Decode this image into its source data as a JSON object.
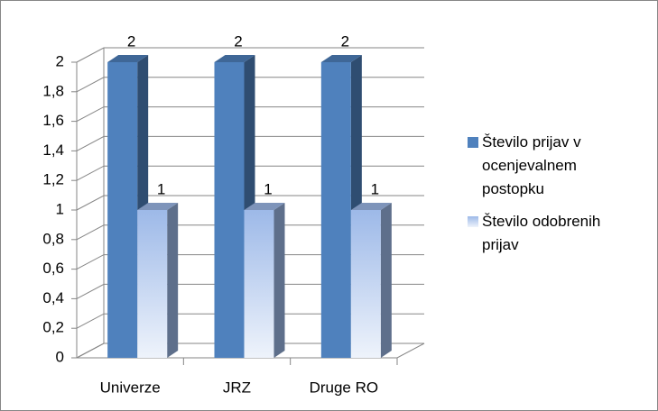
{
  "chart_data": {
    "type": "bar3d",
    "categories": [
      "Univerze",
      "JRZ",
      "Druge RO"
    ],
    "series": [
      {
        "name": "Število prijav v ocenjevalnem postopku",
        "color": "#4f81bd",
        "values": [
          2,
          2,
          2
        ]
      },
      {
        "name": "Število odobrenih prijav",
        "color": "#9db9e8",
        "values": [
          1,
          1,
          1
        ]
      }
    ],
    "ylim": [
      0,
      2
    ],
    "yticks": [
      0,
      {
        "value": 0.2,
        "label": "0,2"
      },
      {
        "value": 0.4,
        "label": "0,4"
      },
      {
        "value": 0.6,
        "label": "0,6"
      },
      {
        "value": 0.8,
        "label": "0,8"
      },
      1,
      {
        "value": 1.2,
        "label": "1,2"
      },
      {
        "value": 1.4,
        "label": "1,4"
      },
      {
        "value": 1.6,
        "label": "1,6"
      },
      {
        "value": 1.8,
        "label": "1,8"
      },
      2
    ],
    "grid": true,
    "legend": "right"
  }
}
